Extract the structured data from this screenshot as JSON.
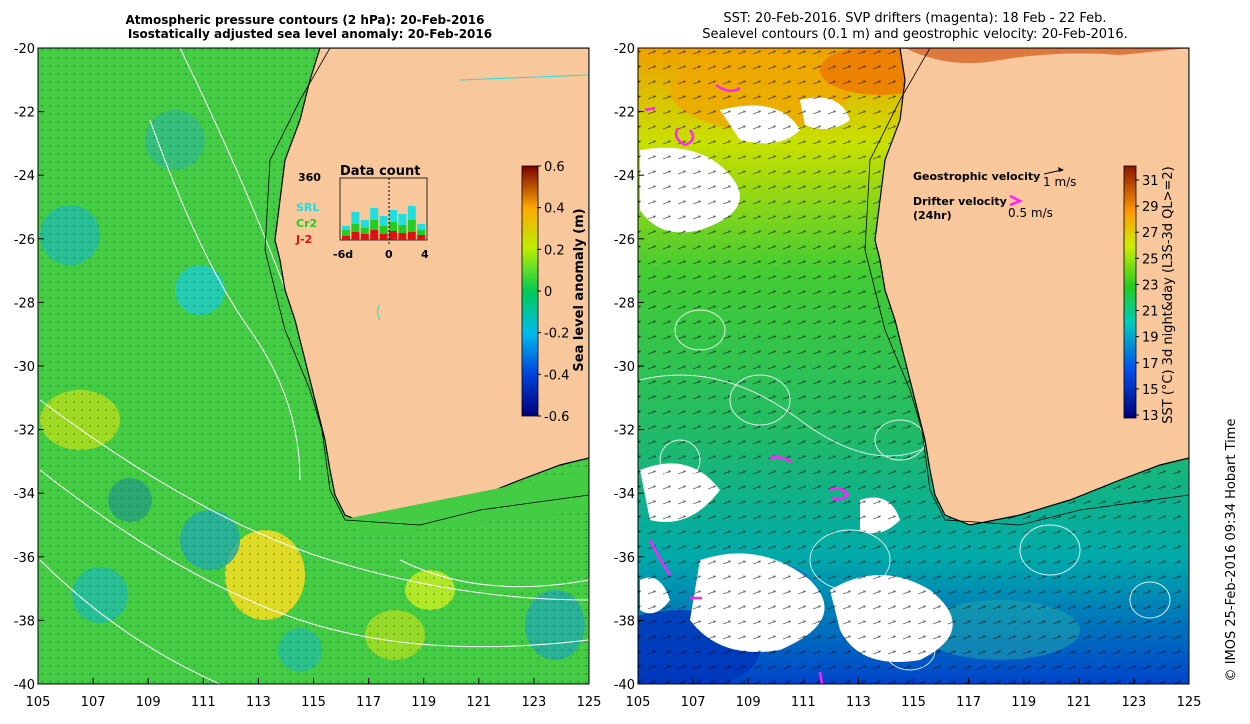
{
  "left_panel": {
    "title_line1": "Atmospheric pressure contours (2 hPa): 20-Feb-2016",
    "title_line2": "Isostatically adjusted sea level anomaly: 20-Feb-2016",
    "y_ticks": [
      "-20",
      "-22",
      "-24",
      "-26",
      "-28",
      "-30",
      "-32",
      "-34",
      "-36",
      "-38",
      "-40"
    ],
    "x_ticks": [
      "105",
      "107",
      "109",
      "111",
      "113",
      "115",
      "117",
      "119",
      "121",
      "123",
      "125"
    ],
    "inset": {
      "title": "Data count",
      "max_label": "360",
      "x_ticks": [
        "-6d",
        "0",
        "4"
      ],
      "legend": [
        {
          "label": "SRL",
          "color": "#22dddd"
        },
        {
          "label": "Cr2",
          "color": "#22cc22"
        },
        {
          "label": "J-2",
          "color": "#dd1111"
        }
      ]
    },
    "colorbar": {
      "label": "Sea level anomaly (m)",
      "ticks": [
        "0.6",
        "0.4",
        "0.2",
        "0",
        "-0.2",
        "-0.4",
        "-0.6"
      ]
    }
  },
  "right_panel": {
    "title_line1": "SST: 20-Feb-2016. SVP drifters (magenta): 18 Feb - 22 Feb.",
    "title_line2": "Sealevel contours (0.1 m) and geostrophic velocity: 20-Feb-2016.",
    "y_ticks": [
      "-20",
      "-22",
      "-24",
      "-26",
      "-28",
      "-30",
      "-32",
      "-34",
      "-36",
      "-38",
      "-40"
    ],
    "x_ticks": [
      "105",
      "107",
      "109",
      "111",
      "113",
      "115",
      "117",
      "119",
      "121",
      "123",
      "125"
    ],
    "legend": {
      "geo_label": "Geostrophic velocity",
      "geo_scale": "1 m/s",
      "drifter_label": "Drifter velocity",
      "drifter_sub": "(24hr)",
      "drifter_scale": "0.5 m/s"
    },
    "colorbar": {
      "label": "SST (°C) 3d night&day (L3S-3d QL>=2)",
      "ticks": [
        "31",
        "29",
        "27",
        "25",
        "23",
        "21",
        "19",
        "17",
        "15",
        "13"
      ]
    }
  },
  "credit": "© IMOS 25-Feb-2016 09:34 Hobart Time",
  "colors": {
    "land": "#f8c89c",
    "coast": "#000000",
    "drifter": "#ff22ff",
    "cloud": "#ffffff"
  }
}
